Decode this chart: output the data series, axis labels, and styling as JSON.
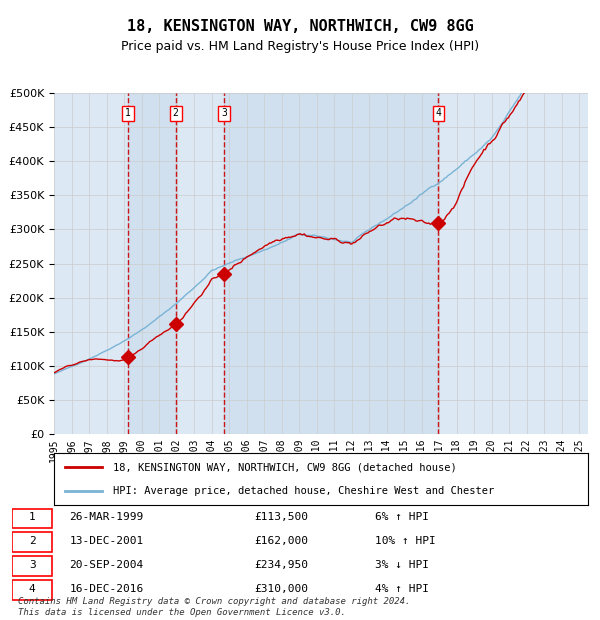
{
  "title": "18, KENSINGTON WAY, NORTHWICH, CW9 8GG",
  "subtitle": "Price paid vs. HM Land Registry's House Price Index (HPI)",
  "xlabel": "",
  "ylabel": "",
  "ylim": [
    0,
    500000
  ],
  "yticks": [
    0,
    50000,
    100000,
    150000,
    200000,
    250000,
    300000,
    350000,
    400000,
    450000,
    500000
  ],
  "ytick_labels": [
    "£0",
    "£50K",
    "£100K",
    "£150K",
    "£200K",
    "£250K",
    "£300K",
    "£350K",
    "£400K",
    "£450K",
    "£500K"
  ],
  "background_color": "#dce9f5",
  "plot_bg_color": "#dce9f5",
  "hpi_color": "#7ab3d4",
  "price_color": "#cc0000",
  "sale_marker_color": "#cc0000",
  "vline_color": "#cc0000",
  "grid_color": "#ffffff",
  "sale_events": [
    {
      "label": "1",
      "date": 1999.23,
      "price": 113500
    },
    {
      "label": "2",
      "date": 2001.95,
      "price": 162000
    },
    {
      "label": "3",
      "date": 2004.72,
      "price": 234950
    },
    {
      "label": "4",
      "date": 2016.96,
      "price": 310000
    }
  ],
  "sale_table": [
    {
      "num": "1",
      "date": "26-MAR-1999",
      "price": "£113,500",
      "hpi": "6% ↑ HPI"
    },
    {
      "num": "2",
      "date": "13-DEC-2001",
      "price": "£162,000",
      "hpi": "10% ↑ HPI"
    },
    {
      "num": "3",
      "date": "20-SEP-2004",
      "price": "£234,950",
      "hpi": "3% ↓ HPI"
    },
    {
      "num": "4",
      "date": "16-DEC-2016",
      "price": "£310,000",
      "hpi": "4% ↑ HPI"
    }
  ],
  "legend_line1": "18, KENSINGTON WAY, NORTHWICH, CW9 8GG (detached house)",
  "legend_line2": "HPI: Average price, detached house, Cheshire West and Chester",
  "footer": "Contains HM Land Registry data © Crown copyright and database right 2024.\nThis data is licensed under the Open Government Licence v3.0.",
  "xstart": 1995.0,
  "xend": 2025.5
}
